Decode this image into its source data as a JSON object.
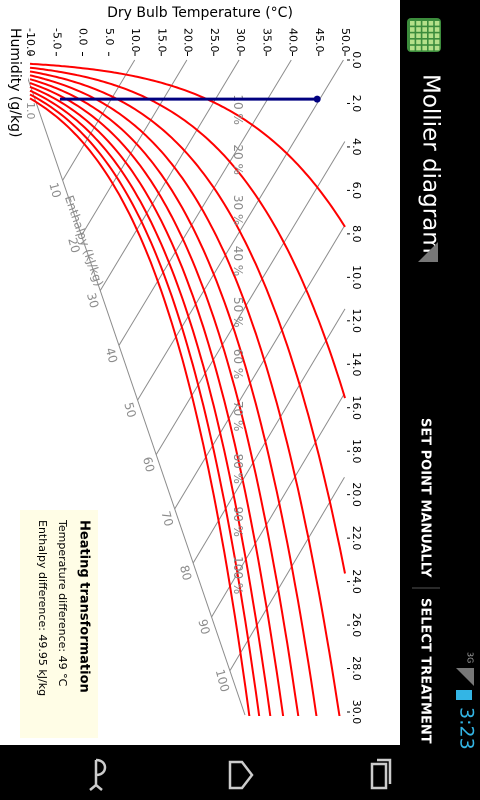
{
  "status_bar": {
    "network": "3G",
    "time": "3:23"
  },
  "action_bar": {
    "title": "Mollier diagram",
    "actions": [
      "SET POINT MANUALLY",
      "SELECT TREATMENT"
    ]
  },
  "chart_data": {
    "type": "mollier",
    "xlabel": "Humidity (g/kg)",
    "ylabel": "Dry Bulb Temperature (°C)",
    "xlim": [
      0,
      30
    ],
    "xticks": [
      {
        "value": 0,
        "label": "0.0"
      },
      {
        "value": 2,
        "label": "2.0"
      },
      {
        "value": 4,
        "label": "4.0"
      },
      {
        "value": 6,
        "label": "6.0"
      },
      {
        "value": 8,
        "label": "8.0"
      },
      {
        "value": 10,
        "label": "10.0"
      },
      {
        "value": 12,
        "label": "12.0"
      },
      {
        "value": 14,
        "label": "14.0"
      },
      {
        "value": 16,
        "label": "16.0"
      },
      {
        "value": 18,
        "label": "18.0"
      },
      {
        "value": 20,
        "label": "20.0"
      },
      {
        "value": 22,
        "label": "22.0"
      },
      {
        "value": 24,
        "label": "24.0"
      },
      {
        "value": 26,
        "label": "26.0"
      },
      {
        "value": 28,
        "label": "28.0"
      },
      {
        "value": 30,
        "label": "30.0"
      }
    ],
    "ylim": [
      -10,
      50
    ],
    "yticks": [
      {
        "value": -10,
        "label": "-10.0"
      },
      {
        "value": -5,
        "label": "-5.0"
      },
      {
        "value": 0,
        "label": "0.0"
      },
      {
        "value": 5,
        "label": "5.0"
      },
      {
        "value": 10,
        "label": "10.0"
      },
      {
        "value": 15,
        "label": "15.0"
      },
      {
        "value": 20,
        "label": "20.0"
      },
      {
        "value": 25,
        "label": "25.0"
      },
      {
        "value": 30,
        "label": "30.0"
      },
      {
        "value": 35,
        "label": "35.0"
      },
      {
        "value": 40,
        "label": "40.0"
      },
      {
        "value": 45,
        "label": "45.0"
      },
      {
        "value": 50,
        "label": "50.0"
      }
    ],
    "rh_curves": {
      "color": "#ff0000",
      "values": [
        10,
        20,
        30,
        40,
        50,
        60,
        70,
        80,
        90,
        100
      ],
      "value_labels": [
        "10 %",
        "20 %",
        "30 %",
        "40 %",
        "50 %",
        "60 %",
        "70 %",
        "80 %",
        "90 %",
        "100 %"
      ]
    },
    "enthalpy_lines": {
      "color": "#8c8c8c",
      "label": "Enthalpy (kJ/kg)",
      "values": [
        10,
        20,
        30,
        40,
        50,
        60,
        70,
        80,
        90,
        100
      ]
    },
    "annotation": "1.0",
    "process": {
      "color": "#000080",
      "humidity": 1.8,
      "temperature": [
        -4.3,
        44.7
      ]
    }
  },
  "info_box": {
    "title": "Heating transformation",
    "lines": [
      "Temperature difference: 49 °C",
      "Enthalpy difference: 49.95 kJ/kg"
    ]
  }
}
